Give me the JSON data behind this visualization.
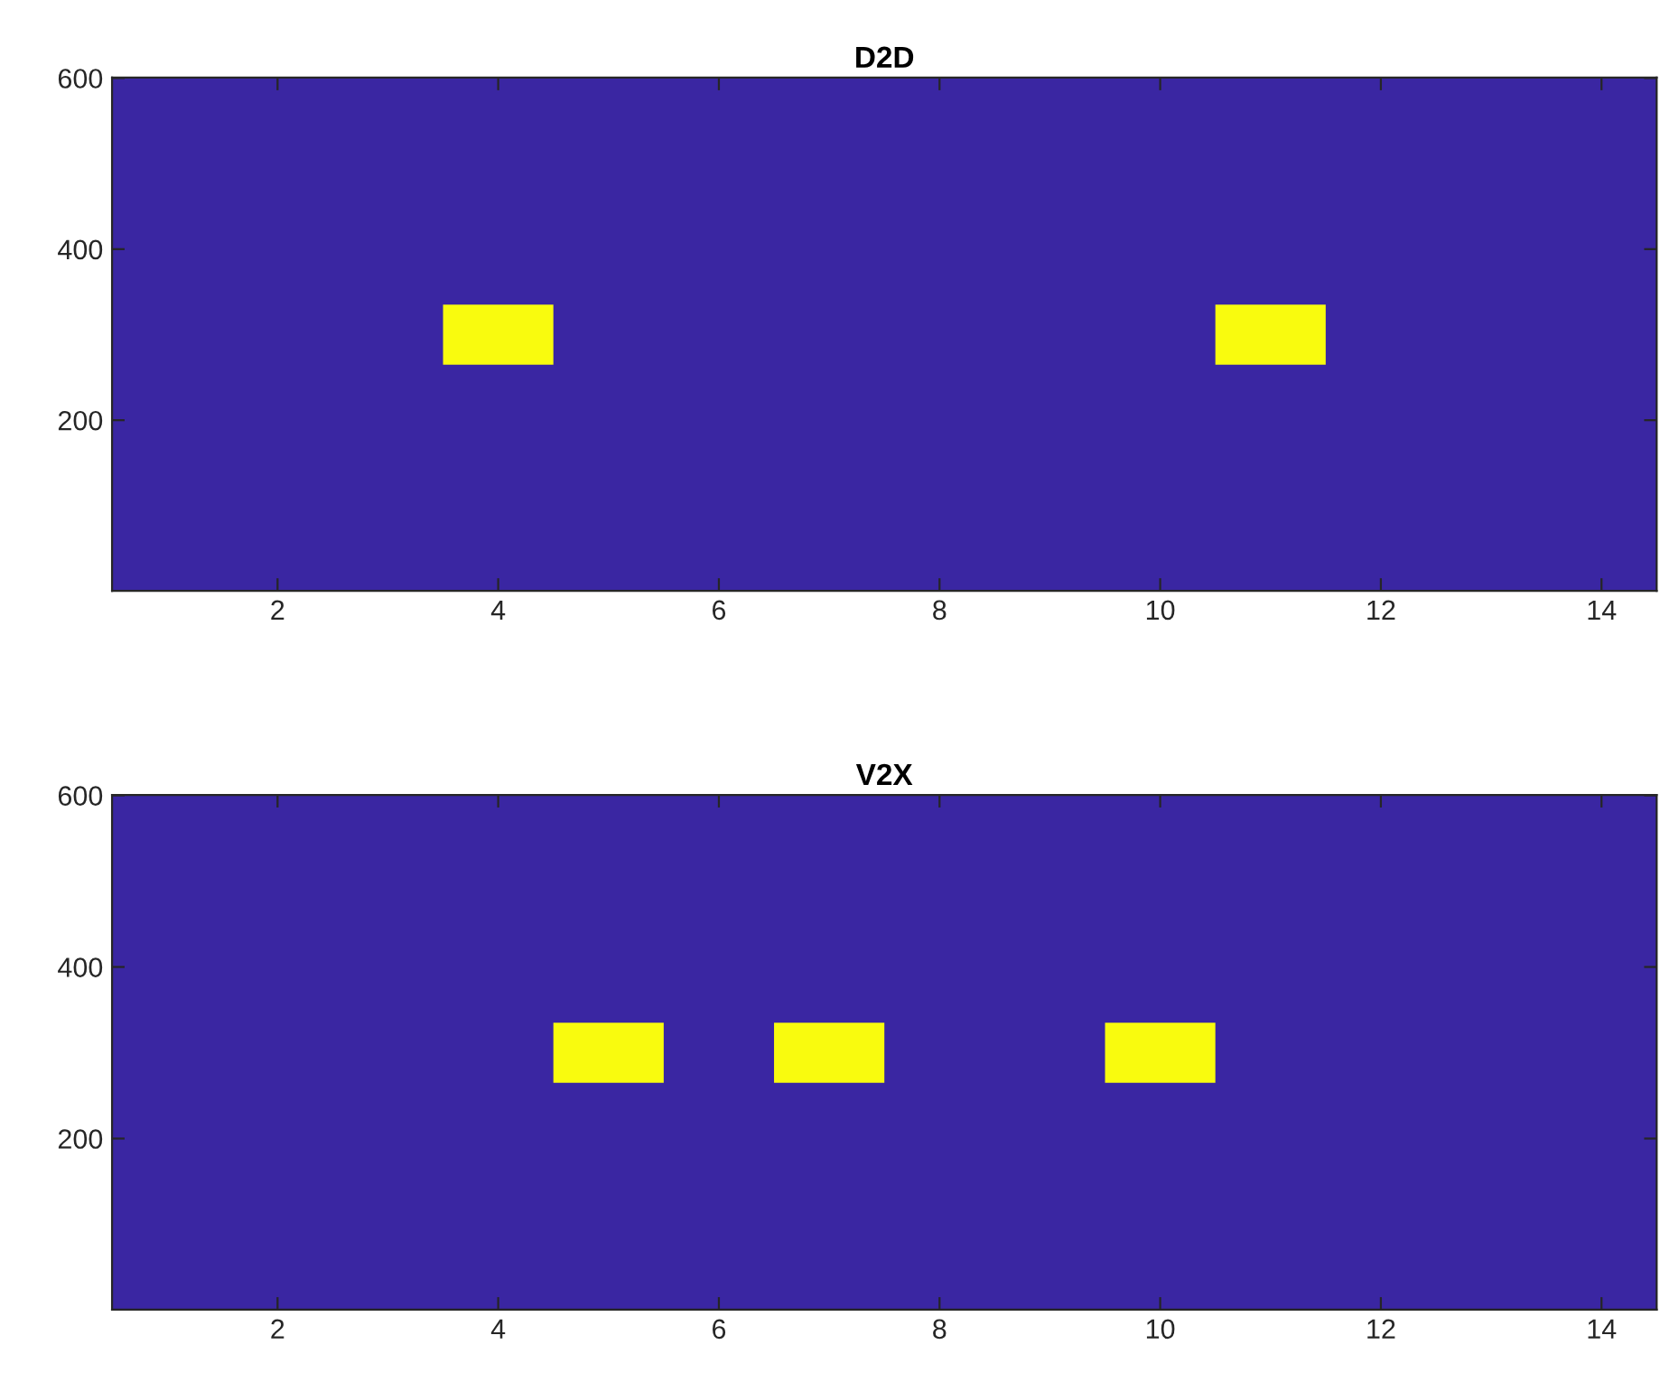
{
  "chart_data": [
    {
      "type": "bar",
      "title": "D2D",
      "x": [
        4,
        11
      ],
      "values": [
        70,
        70
      ],
      "base": [
        265,
        265
      ],
      "color": "#f9fb0e",
      "xlim": [
        0.5,
        14.5
      ],
      "ylim": [
        0.5,
        600.5
      ],
      "xticks": [
        2,
        4,
        6,
        8,
        10,
        12,
        14
      ],
      "yticks": [
        200,
        400,
        600
      ],
      "grid": false
    },
    {
      "type": "bar",
      "title": "V2X",
      "x": [
        5,
        7,
        10
      ],
      "values": [
        70,
        70,
        70
      ],
      "base": [
        265,
        265,
        265
      ],
      "color": "#f9fb0e",
      "xlim": [
        0.5,
        14.5
      ],
      "ylim": [
        0.5,
        600.5
      ],
      "xticks": [
        2,
        4,
        6,
        8,
        10,
        12,
        14
      ],
      "yticks": [
        200,
        400,
        600
      ],
      "grid": false
    }
  ]
}
